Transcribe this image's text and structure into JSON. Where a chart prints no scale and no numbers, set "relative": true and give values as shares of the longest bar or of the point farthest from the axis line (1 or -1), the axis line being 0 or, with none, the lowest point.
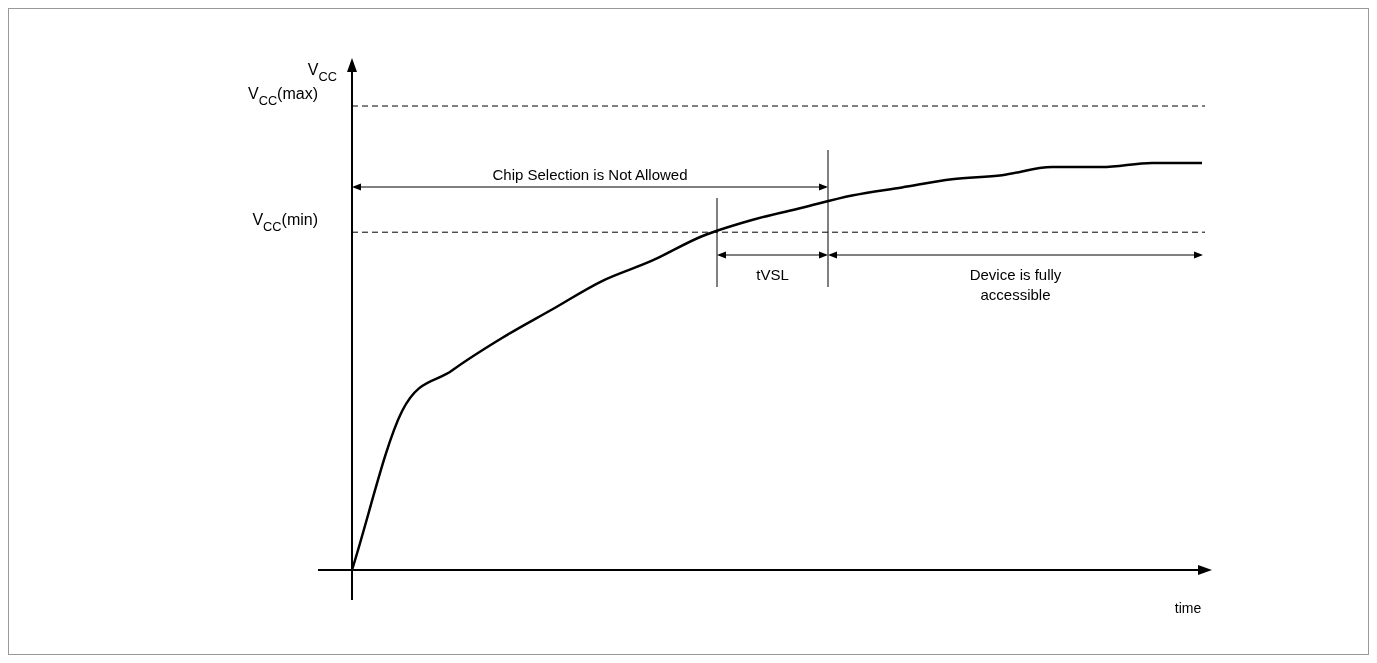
{
  "chart_data": {
    "type": "line",
    "relative": true,
    "categories": [
      null,
      null,
      null,
      null,
      null,
      null,
      null,
      null,
      null,
      null,
      null,
      null,
      null,
      null,
      null,
      null,
      null,
      null
    ],
    "values": [
      0,
      0.39,
      0.49,
      0.57,
      0.64,
      0.71,
      0.76,
      0.82,
      0.86,
      0.89,
      0.92,
      0.94,
      0.96,
      0.97,
      0.99,
      0.99,
      1,
      1
    ],
    "color": "#000000",
    "xlabel": "time",
    "ylabel": "V$_{CC}$",
    "ref_lines": [
      {
        "axis": "y",
        "value": 1.14,
        "label": "V$_{CC}$(max)",
        "line_style": "dashed"
      },
      {
        "axis": "y",
        "value": 0.83,
        "label": "V$_{CC}$(min)",
        "line_style": "dashed"
      }
    ],
    "annotations": [
      "Chip Selection is Not Allowed",
      "tVSL",
      "Device is fully accessible"
    ],
    "marker": "none",
    "legend": false,
    "grid": false,
    "tick_labels": false
  }
}
